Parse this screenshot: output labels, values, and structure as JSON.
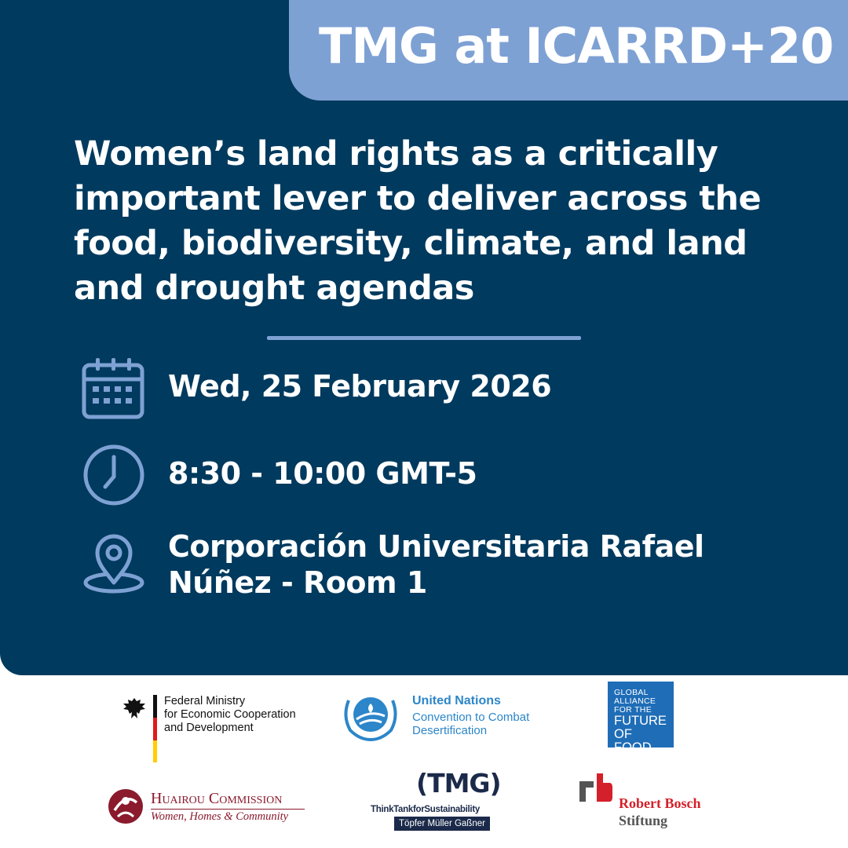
{
  "header": {
    "badge": "TMG at ICARRD+20"
  },
  "event": {
    "title": "Women’s land rights as a critically important lever to deliver across the food, biodiversity, climate, and land and drought agendas",
    "date": "Wed, 25 February 2026",
    "time": "8:30 - 10:00 GMT-5",
    "venue_line1": "Corporación Universitaria Rafael",
    "venue_line2": "Núñez - Room 1"
  },
  "icons": {
    "date": "calendar-icon",
    "time": "clock-icon",
    "venue": "location-pin-icon"
  },
  "colors": {
    "background": "#003a5e",
    "accent": "#7ea1d4",
    "text": "#ffffff"
  },
  "logos": {
    "bmz": {
      "line1": "Federal Ministry",
      "line2": "for Economic Cooperation",
      "line3": "and Development"
    },
    "unccd": {
      "title": "United Nations",
      "line1": "Convention to Combat",
      "line2": "Desertification"
    },
    "gaff": {
      "line1": "GLOBAL",
      "line2": "ALLIANCE",
      "line3": "FOR THE",
      "line4": "FUTURE",
      "line5": "OF FOOD"
    },
    "huairou": {
      "name": "Huairou Commission",
      "tagline": "Women, Homes & Community"
    },
    "tmg": {
      "mark": "(TMG)",
      "sub": "ThinkTankforSustainability",
      "bar": "Töpfer Müller Gaßner"
    },
    "bosch": {
      "name": "Robert Bosch",
      "sub": "Stiftung"
    }
  }
}
